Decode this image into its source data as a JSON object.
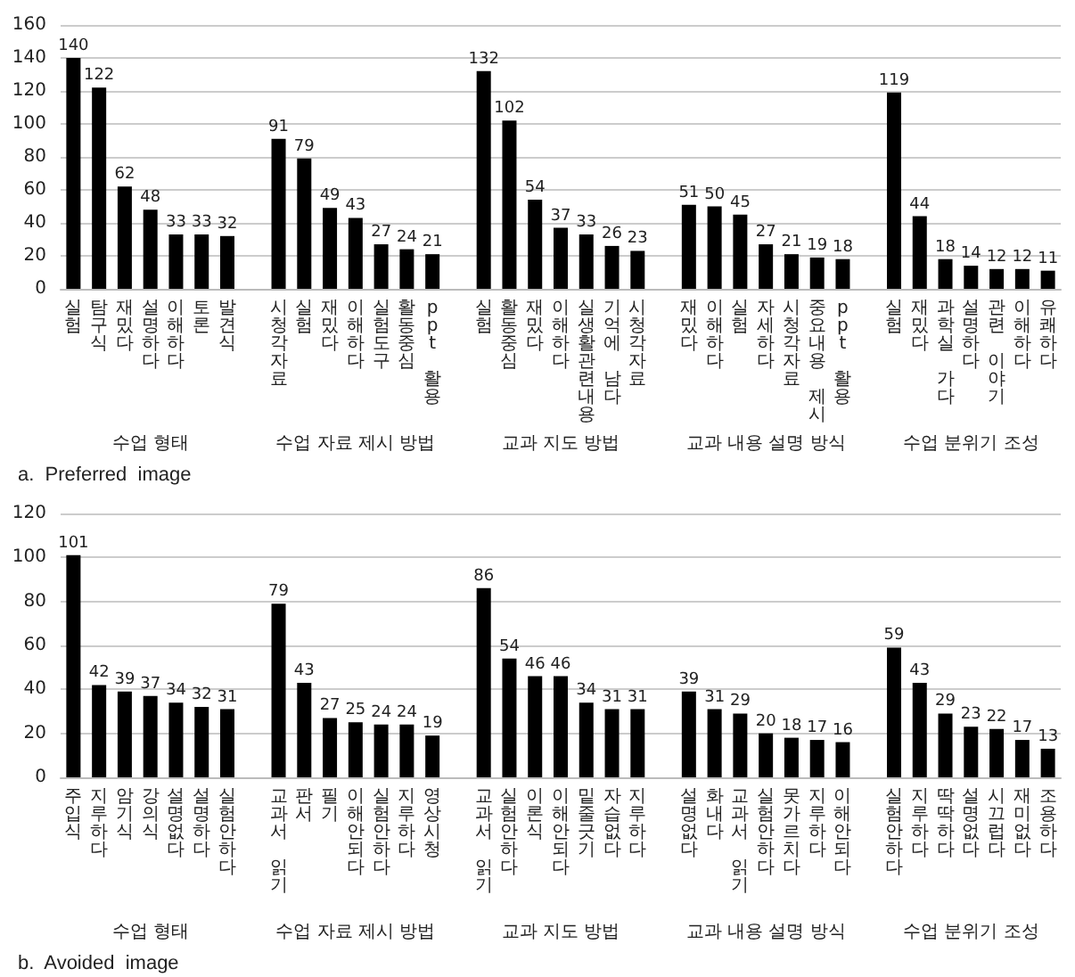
{
  "chart_data": [
    {
      "type": "bar",
      "title": "a.  Preferred  image",
      "categories": [
        "실험",
        "탐구식",
        "재밌다",
        "설명하다",
        "이해하다",
        "토론",
        "발견식",
        null,
        "시청각자료",
        "실험",
        "재밌다",
        "이해하다",
        "실험도구",
        "활동중심",
        "ppt 활용",
        null,
        "실험",
        "활동중심",
        "재밌다",
        "이해하다",
        "실생활관련내용",
        "기억에 남다",
        "시청각자료",
        null,
        "재밌다",
        "이해하다",
        "실험",
        "자세하다",
        "시청각자료",
        "중요내용 제시",
        "ppt 활용",
        null,
        "실험",
        "재밌다",
        "과학실 가다",
        "설명하다",
        "관련 이야기",
        "이해하다",
        "유쾌하다"
      ],
      "values": [
        140,
        122,
        62,
        48,
        33,
        33,
        32,
        null,
        91,
        79,
        49,
        43,
        27,
        24,
        21,
        null,
        132,
        102,
        54,
        37,
        33,
        26,
        23,
        null,
        51,
        50,
        45,
        27,
        21,
        19,
        18,
        null,
        119,
        44,
        18,
        14,
        12,
        12,
        11
      ],
      "color": "#000000",
      "ylim": [
        0,
        160
      ],
      "yticks": [
        0,
        20,
        40,
        60,
        80,
        100,
        120,
        140,
        160
      ],
      "grid": "y",
      "data_labels": true,
      "annotations": [
        "수업 형태",
        "수업 자료 제시 방법",
        "교과 지도 방법",
        "교과 내용 설명 방식",
        "수업 분위기 조성"
      ]
    },
    {
      "type": "bar",
      "title": "b.  Avoided  image",
      "categories": [
        "주입식",
        "지루하다",
        "암기식",
        "강의식",
        "설명없다",
        "설명하다",
        "실험안하다",
        null,
        "교과서 읽기",
        "판서",
        "필기",
        "이해안되다",
        "실험안하다",
        "지루하다",
        "영상시청",
        null,
        "교과서 읽기",
        "실험안하다",
        "이론식",
        "이해안되다",
        "밑줄긋기",
        "자습없다",
        "지루하다",
        null,
        "설명없다",
        "화내다",
        "교과서 읽기",
        "실험안하다",
        "못가르치다",
        "지루하다",
        "이해안되다",
        null,
        "실험안하다",
        "지루하다",
        "딱딱하다",
        "설명없다",
        "시끄럽다",
        "재미없다",
        "조용하다"
      ],
      "values": [
        101,
        42,
        39,
        37,
        34,
        32,
        31,
        null,
        79,
        43,
        27,
        25,
        24,
        24,
        19,
        null,
        86,
        54,
        46,
        46,
        34,
        31,
        31,
        null,
        39,
        31,
        29,
        20,
        18,
        17,
        16,
        null,
        59,
        43,
        29,
        23,
        22,
        17,
        13
      ],
      "color": "#000000",
      "ylim": [
        0,
        120
      ],
      "yticks": [
        0,
        20,
        40,
        60,
        80,
        100,
        120
      ],
      "grid": "y",
      "data_labels": true,
      "annotations": [
        "수업 형태",
        "수업 자료 제시 방법",
        "교과 지도 방법",
        "교과 내용 설명 방식",
        "수업 분위기 조성"
      ]
    }
  ]
}
